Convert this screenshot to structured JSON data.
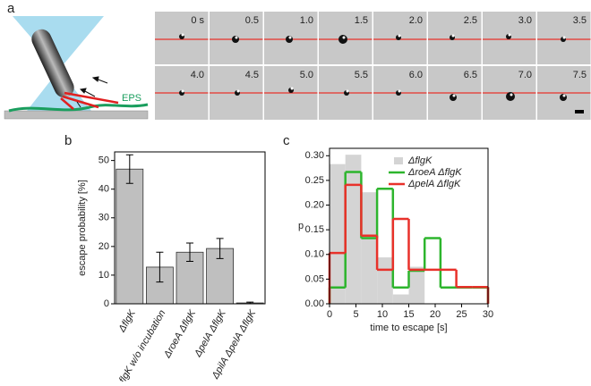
{
  "panel_labels": [
    "a",
    "b",
    "c"
  ],
  "image_panel": {
    "time_labels": [
      "0 s",
      "0.5",
      "1.0",
      "1.5",
      "2.0",
      "2.5",
      "3.0",
      "3.5",
      "4.0",
      "4.5",
      "5.0",
      "5.5",
      "6.0",
      "6.5",
      "7.0",
      "7.5"
    ],
    "schematic_label": "EPS"
  },
  "chart_data": [
    {
      "type": "bar",
      "ylabel": "escape probability [%]",
      "categories": [
        "ΔflgK",
        "ΔflgK w/o incubation",
        "ΔroeA ΔflgK",
        "ΔpelA ΔflgK",
        "ΔpilA ΔpelA ΔflgK"
      ],
      "values": [
        47,
        12.8,
        18,
        19.3,
        0.3
      ],
      "errors": [
        5,
        5.2,
        3.2,
        3.5,
        0.3
      ],
      "color": "#bfbfbf",
      "ylim": [
        0,
        53
      ],
      "yticks": [
        0,
        10,
        20,
        30,
        40,
        50
      ]
    },
    {
      "type": "histogram",
      "xlabel": "time to escape [s]",
      "ylabel": "p",
      "series": [
        {
          "name": "ΔflgK",
          "color": "#d4d4d4",
          "style": "filled",
          "bins": [
            0,
            3,
            6,
            9,
            12,
            15,
            18
          ],
          "values": [
            0.283,
            0.302,
            0.226,
            0.094,
            0.019,
            0.075
          ]
        },
        {
          "name": "ΔroeA ΔflgK",
          "color": "#2db52d",
          "style": "step",
          "bins": [
            0,
            3,
            6,
            9,
            12,
            15,
            18,
            21,
            24,
            27,
            30
          ],
          "values": [
            0.033,
            0.267,
            0.133,
            0.233,
            0.033,
            0.067,
            0.133,
            0.033,
            0.033,
            0.033
          ]
        },
        {
          "name": "ΔpelA ΔflgK",
          "color": "#e8312a",
          "style": "step",
          "bins": [
            0,
            3,
            6,
            9,
            12,
            15,
            18,
            21,
            24,
            27,
            30
          ],
          "values": [
            0.103,
            0.241,
            0.138,
            0.069,
            0.172,
            0.069,
            0.069,
            0.069,
            0.034,
            0.034
          ]
        }
      ],
      "xlim": [
        0,
        30
      ],
      "xticks": [
        0,
        5,
        10,
        15,
        20,
        25,
        30
      ],
      "ylim": [
        0,
        0.315
      ],
      "yticks": [
        {
          "value": 0,
          "label": "0.00"
        },
        {
          "value": 0.05,
          "label": "0.05"
        },
        {
          "value": 0.1,
          "label": "0.10"
        },
        {
          "value": 0.15,
          "label": "0.15"
        },
        {
          "value": 0.2,
          "label": "0.20"
        },
        {
          "value": 0.25,
          "label": "0.25"
        },
        {
          "value": 0.3,
          "label": "0.30"
        }
      ]
    }
  ]
}
